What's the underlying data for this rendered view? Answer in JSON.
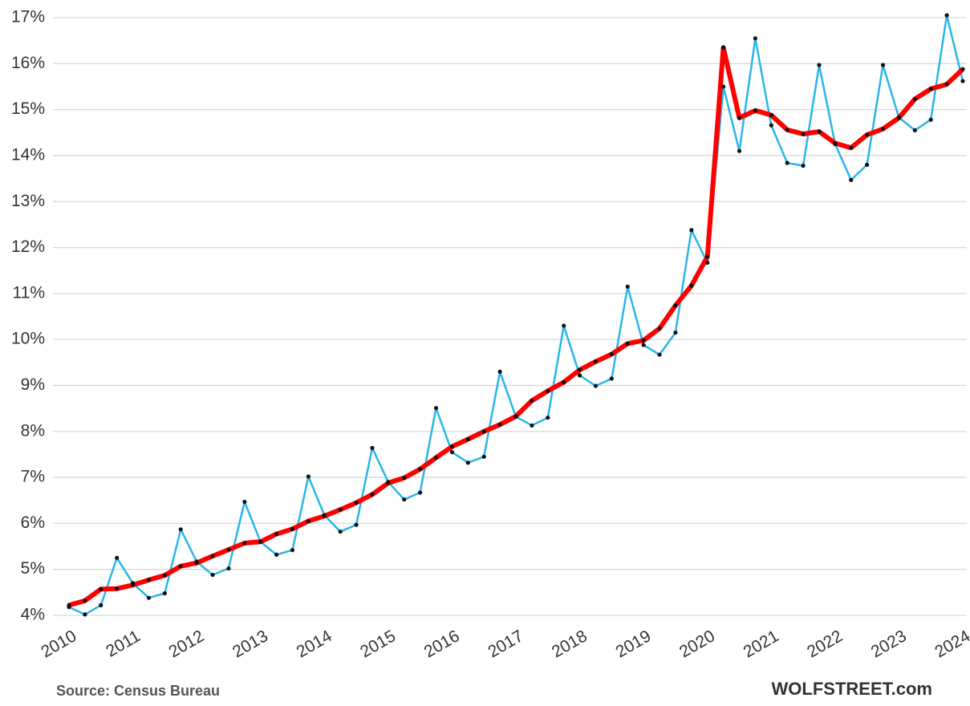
{
  "chart_data": {
    "type": "line",
    "categories": [
      "2010",
      null,
      null,
      null,
      "2011",
      null,
      null,
      null,
      "2012",
      null,
      null,
      null,
      "2013",
      null,
      null,
      null,
      "2014",
      null,
      null,
      null,
      "2015",
      null,
      null,
      null,
      "2016",
      null,
      null,
      null,
      "2017",
      null,
      null,
      null,
      "2018",
      null,
      null,
      null,
      "2019",
      null,
      null,
      null,
      "2020",
      null,
      null,
      null,
      "2021",
      null,
      null,
      null,
      "2022",
      null,
      null,
      null,
      "2023",
      null,
      null,
      null,
      "2024"
    ],
    "series": [
      {
        "color": "#29b6e8",
        "values": [
          4.18,
          4.02,
          4.22,
          5.25,
          4.7,
          4.38,
          4.48,
          5.87,
          5.17,
          4.88,
          5.02,
          6.47,
          5.6,
          5.32,
          5.42,
          7.02,
          6.18,
          5.82,
          5.97,
          7.64,
          6.9,
          6.52,
          6.67,
          8.51,
          7.55,
          7.32,
          7.45,
          9.3,
          8.32,
          8.13,
          8.3,
          10.3,
          9.22,
          8.99,
          9.15,
          11.15,
          9.88,
          9.67,
          10.15,
          12.38,
          11.67,
          15.5,
          14.1,
          16.55,
          14.66,
          13.84,
          13.78,
          15.97,
          14.25,
          13.47,
          13.8,
          15.97,
          14.83,
          14.55,
          14.78,
          17.05,
          15.62
        ]
      },
      {
        "color": "#ff0000",
        "values": [
          4.22,
          4.32,
          4.57,
          4.58,
          4.66,
          4.77,
          4.87,
          5.07,
          5.14,
          5.29,
          5.43,
          5.57,
          5.6,
          5.77,
          5.88,
          6.05,
          6.16,
          6.3,
          6.45,
          6.63,
          6.88,
          6.99,
          7.18,
          7.43,
          7.67,
          7.83,
          8.0,
          8.15,
          8.33,
          8.67,
          8.88,
          9.07,
          9.34,
          9.52,
          9.68,
          9.91,
          9.98,
          10.24,
          10.74,
          11.17,
          11.8,
          16.35,
          14.82,
          14.98,
          14.88,
          14.56,
          14.47,
          14.52,
          14.27,
          14.17,
          14.45,
          14.58,
          14.82,
          15.23,
          15.45,
          15.55,
          15.88
        ]
      }
    ],
    "ylim": [
      4,
      17
    ],
    "yticks": [
      {
        "value": 4,
        "label": "4%"
      },
      {
        "value": 5,
        "label": "5%"
      },
      {
        "value": 6,
        "label": "6%"
      },
      {
        "value": 7,
        "label": "7%"
      },
      {
        "value": 8,
        "label": "8%"
      },
      {
        "value": 9,
        "label": "9%"
      },
      {
        "value": 10,
        "label": "10%"
      },
      {
        "value": 11,
        "label": "11%"
      },
      {
        "value": 12,
        "label": "12%"
      },
      {
        "value": 13,
        "label": "13%"
      },
      {
        "value": 14,
        "label": "14%"
      },
      {
        "value": 15,
        "label": "15%"
      },
      {
        "value": 16,
        "label": "16%"
      },
      {
        "value": 17,
        "label": "17%"
      }
    ],
    "grid": true,
    "source": "Source: Census Bureau",
    "brand": "WOLFSTREET.com"
  }
}
